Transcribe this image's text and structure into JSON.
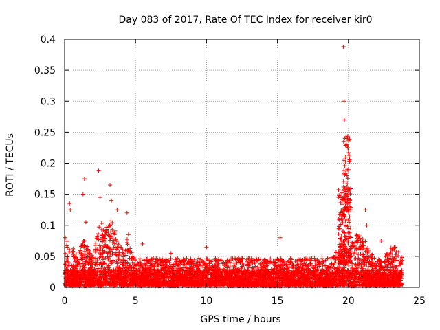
{
  "chart_data": {
    "type": "scatter",
    "title": "Day 083 of 2017, Rate Of TEC Index for receiver kir0",
    "xlabel": "GPS time / hours",
    "ylabel": "ROTI / TECUs",
    "xlim": [
      0,
      25
    ],
    "ylim": [
      0,
      0.4
    ],
    "grid": true,
    "marker": "+",
    "series_color": "#ff0000",
    "x_ticks": [
      0,
      5,
      10,
      15,
      20,
      25
    ],
    "x_tick_labels": [
      "0",
      "5",
      "10",
      "15",
      "20",
      "25"
    ],
    "y_ticks": [
      0,
      0.05,
      0.1,
      0.15,
      0.2,
      0.25,
      0.3,
      0.35,
      0.4
    ],
    "y_tick_labels": [
      "0",
      "0.05",
      "0.1",
      "0.15",
      "0.2",
      "0.25",
      "0.3",
      "0.35",
      "0.4"
    ],
    "data_range_x": [
      0,
      23.8
    ],
    "baseline_roti": 0.025,
    "peaks": [
      {
        "x": 0.05,
        "y": 0.08
      },
      {
        "x": 0.35,
        "y": 0.135
      },
      {
        "x": 0.4,
        "y": 0.125
      },
      {
        "x": 1.3,
        "y": 0.15
      },
      {
        "x": 1.4,
        "y": 0.175
      },
      {
        "x": 1.5,
        "y": 0.105
      },
      {
        "x": 2.4,
        "y": 0.188
      },
      {
        "x": 2.5,
        "y": 0.145
      },
      {
        "x": 3.2,
        "y": 0.165
      },
      {
        "x": 3.3,
        "y": 0.14
      },
      {
        "x": 3.7,
        "y": 0.125
      },
      {
        "x": 4.4,
        "y": 0.12
      },
      {
        "x": 4.5,
        "y": 0.085
      },
      {
        "x": 5.5,
        "y": 0.07
      },
      {
        "x": 7.5,
        "y": 0.055
      },
      {
        "x": 10.0,
        "y": 0.065
      },
      {
        "x": 15.2,
        "y": 0.08
      },
      {
        "x": 19.3,
        "y": 0.145
      },
      {
        "x": 19.45,
        "y": 0.12
      },
      {
        "x": 19.65,
        "y": 0.388
      },
      {
        "x": 19.7,
        "y": 0.3
      },
      {
        "x": 19.72,
        "y": 0.27
      },
      {
        "x": 19.75,
        "y": 0.24
      },
      {
        "x": 19.8,
        "y": 0.21
      },
      {
        "x": 19.85,
        "y": 0.23
      },
      {
        "x": 19.9,
        "y": 0.18
      },
      {
        "x": 20.0,
        "y": 0.22
      },
      {
        "x": 20.05,
        "y": 0.155
      },
      {
        "x": 20.1,
        "y": 0.13
      },
      {
        "x": 21.2,
        "y": 0.125
      },
      {
        "x": 21.3,
        "y": 0.1
      },
      {
        "x": 22.3,
        "y": 0.075
      },
      {
        "x": 23.3,
        "y": 0.065
      }
    ]
  }
}
